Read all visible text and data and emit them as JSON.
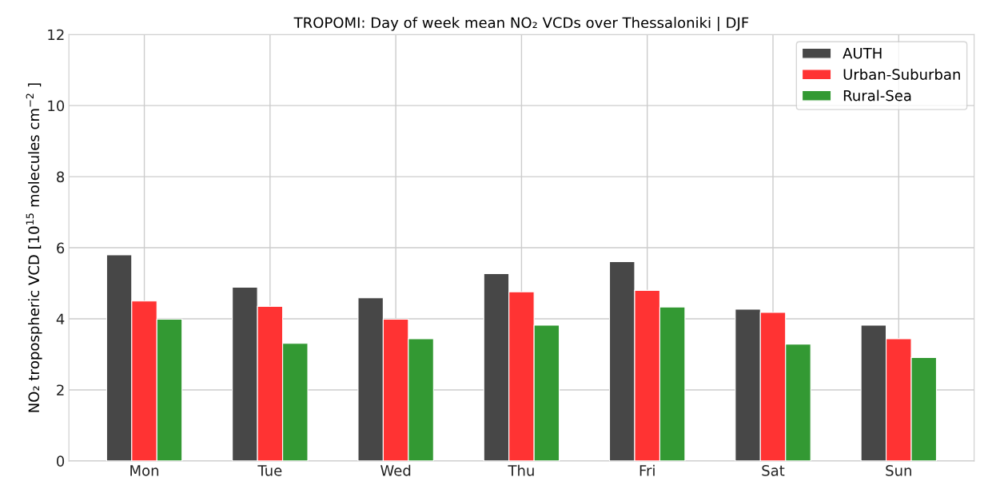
{
  "chart_data": {
    "type": "bar",
    "title": "TROPOMI: Day of week mean NO₂ VCDs over Thessaloniki | DJF",
    "ylabel": "NO₂ tropospheric VCD [10$^{15}$ molecules cm$^{−2}$ ]",
    "categories": [
      "Mon",
      "Tue",
      "Wed",
      "Thu",
      "Fri",
      "Sat",
      "Sun"
    ],
    "series": [
      {
        "name": "AUTH",
        "color": "#474747",
        "values": [
          5.8,
          4.89,
          4.59,
          5.27,
          5.61,
          4.27,
          3.82
        ]
      },
      {
        "name": "Urban-Suburban",
        "color": "#ff3333",
        "values": [
          4.5,
          4.35,
          3.99,
          4.76,
          4.8,
          4.18,
          3.44
        ]
      },
      {
        "name": "Rural-Sea",
        "color": "#339933",
        "values": [
          3.99,
          3.31,
          3.44,
          3.82,
          4.33,
          3.29,
          2.91
        ]
      }
    ],
    "ylim": [
      0,
      12
    ],
    "yticks": [
      0,
      2,
      4,
      6,
      8,
      10,
      12
    ],
    "grid": true,
    "legend": "top right"
  }
}
